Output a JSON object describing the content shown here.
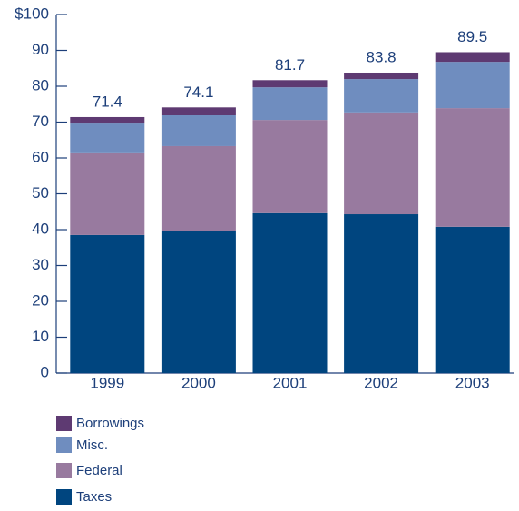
{
  "chart_data": {
    "type": "stacked_bar",
    "categories": [
      "1999",
      "2000",
      "2001",
      "2002",
      "2003"
    ],
    "series": [
      {
        "name": "Taxes",
        "color": "#00457f",
        "values": [
          38.5,
          39.7,
          44.6,
          44.3,
          40.8
        ]
      },
      {
        "name": "Federal",
        "color": "#987a9f",
        "values": [
          22.8,
          23.6,
          26.0,
          28.4,
          33.1
        ]
      },
      {
        "name": "Misc.",
        "color": "#6f8dbf",
        "values": [
          8.3,
          8.6,
          9.1,
          9.3,
          12.9
        ]
      },
      {
        "name": "Borrowings",
        "color": "#5e3a72",
        "values": [
          1.8,
          2.2,
          2.0,
          1.8,
          2.7
        ]
      }
    ],
    "totals": [
      71.4,
      74.1,
      81.7,
      83.8,
      89.5
    ],
    "ylim": [
      0,
      100
    ],
    "yticks": [
      0,
      10,
      20,
      30,
      40,
      50,
      60,
      70,
      80,
      90,
      {
        "value": 100,
        "label": "$100"
      }
    ]
  }
}
